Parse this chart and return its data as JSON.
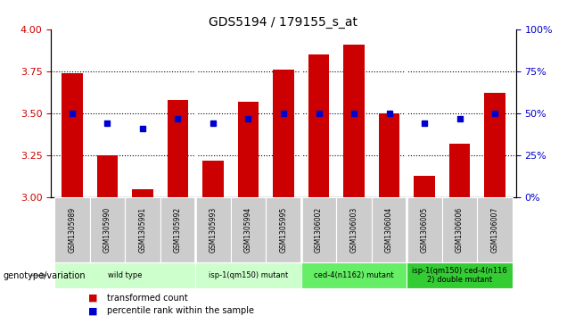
{
  "title": "GDS5194 / 179155_s_at",
  "samples": [
    "GSM1305989",
    "GSM1305990",
    "GSM1305991",
    "GSM1305992",
    "GSM1305993",
    "GSM1305994",
    "GSM1305995",
    "GSM1306002",
    "GSM1306003",
    "GSM1306004",
    "GSM1306005",
    "GSM1306006",
    "GSM1306007"
  ],
  "transformed_count": [
    3.74,
    3.25,
    3.05,
    3.58,
    3.22,
    3.57,
    3.76,
    3.85,
    3.91,
    3.5,
    3.13,
    3.32,
    3.62
  ],
  "percentile_rank": [
    50,
    44,
    41,
    47,
    44,
    47,
    50,
    50,
    50,
    50,
    44,
    47,
    50
  ],
  "ylim_left": [
    3.0,
    4.0
  ],
  "ylim_right": [
    0,
    100
  ],
  "yticks_left": [
    3.0,
    3.25,
    3.5,
    3.75,
    4.0
  ],
  "yticks_right": [
    0,
    25,
    50,
    75,
    100
  ],
  "group_boundaries": [
    {
      "start": 0,
      "end": 3,
      "label": "wild type",
      "color": "#ccffcc"
    },
    {
      "start": 4,
      "end": 6,
      "label": "isp-1(qm150) mutant",
      "color": "#ccffcc"
    },
    {
      "start": 7,
      "end": 9,
      "label": "ced-4(n1162) mutant",
      "color": "#66ee66"
    },
    {
      "start": 10,
      "end": 12,
      "label": "isp-1(qm150) ced-4(n116\n2) double mutant",
      "color": "#33cc33"
    }
  ],
  "bar_color": "#cc0000",
  "dot_color": "#0000cc",
  "background_color": "#ffffff",
  "tick_label_color_left": "#cc0000",
  "tick_label_color_right": "#0000cc",
  "legend_labels": [
    "transformed count",
    "percentile rank within the sample"
  ],
  "legend_colors": [
    "#cc0000",
    "#0000cc"
  ],
  "genotype_label": "genotype/variation",
  "sample_bg_color": "#cccccc",
  "separator_color": "#ffffff"
}
